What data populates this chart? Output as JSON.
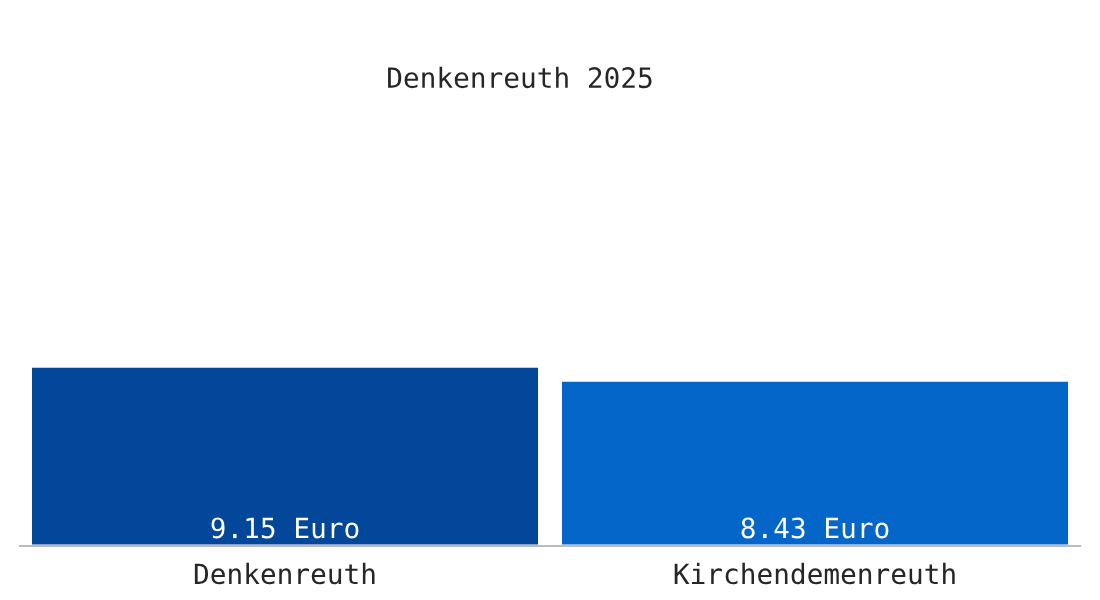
{
  "chart_data": {
    "type": "bar",
    "title": "Denkenreuth 2025",
    "categories": [
      "Denkenreuth",
      "Kirchendemenreuth"
    ],
    "values": [
      9.15,
      8.43
    ],
    "colors": [
      "#03479a",
      "#0466c8"
    ],
    "value_labels": [
      "9.15 Euro",
      "8.43 Euro"
    ],
    "tick_labels": "x",
    "grid": false,
    "legend": false
  }
}
